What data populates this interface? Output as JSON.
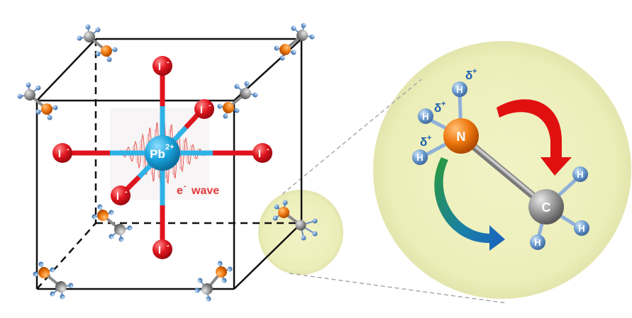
{
  "labels": {
    "iodide": "I",
    "charge_minus": "-",
    "lead_base": "Pb",
    "lead_charge": "2+",
    "wave_e": "e",
    "wave_minus": "-",
    "wave_word": "wave",
    "nitrogen": "N",
    "carbon": "C",
    "hydrogen": "H",
    "delta": "δ",
    "delta_plus": "+"
  },
  "colors": {
    "iodide": "#e0141e",
    "lead": "#1aa3dc",
    "bond_blue": "#2eb2e6",
    "bond_red": "#e0141e",
    "nitrogen": "#f07a10",
    "carbon": "#8c8c8c",
    "hydrogen": "#5a8fc7",
    "halo": "#eef0c0",
    "wave": "#e23a3a",
    "arrow_red": "#e01010",
    "arrow_green": "#2aa04a",
    "arrow_blue": "#1a6fc0",
    "delta_text": "#1a5fb0"
  },
  "icons": [
    "methylammonium-cation-icon",
    "iodide-ion-icon",
    "lead-ion-icon",
    "rotation-arrow-icon"
  ]
}
